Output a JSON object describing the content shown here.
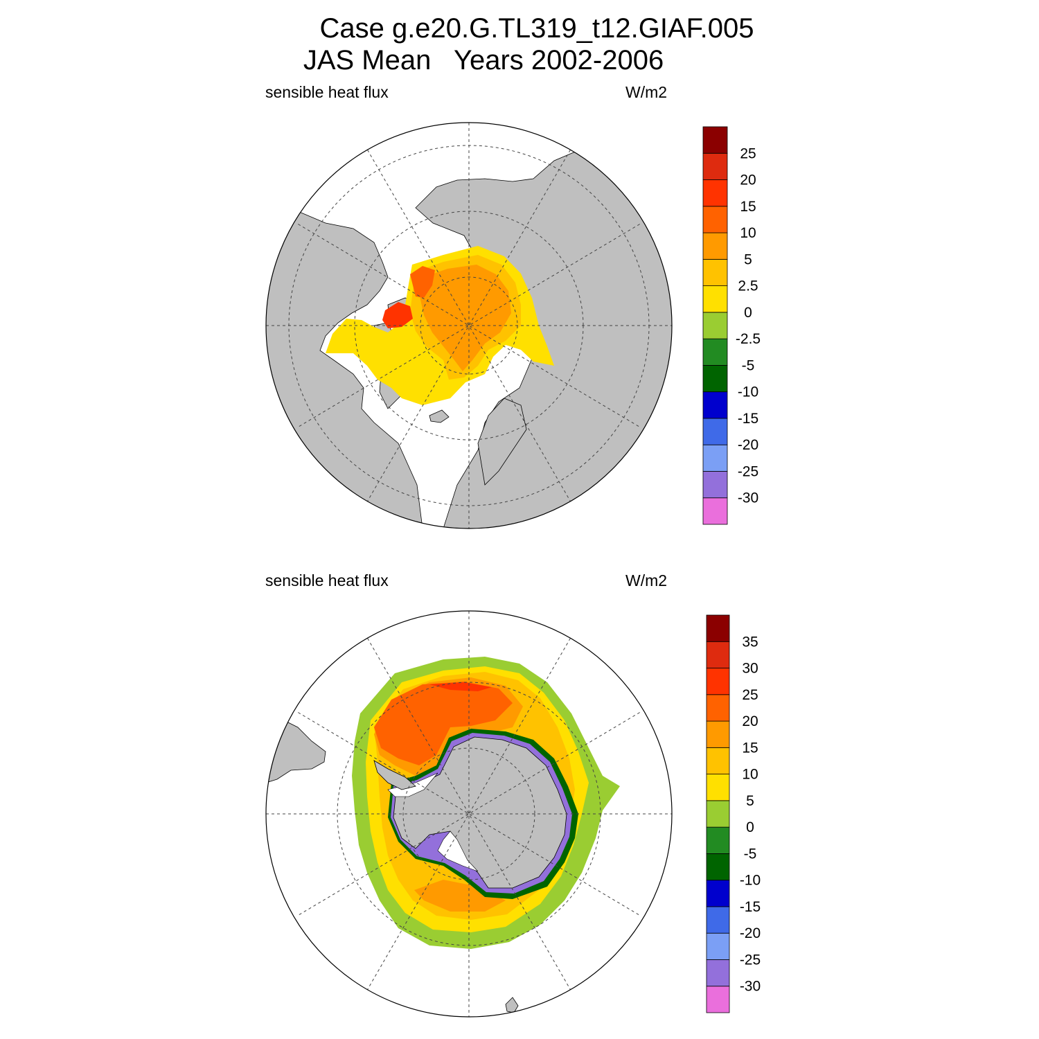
{
  "title": {
    "line1": "Case g.e20.G.TL319_t12.GIAF.005",
    "line2": "JAS Mean   Years 2002-2006"
  },
  "colors": {
    "land": "#bfbfbf",
    "ice_free": "#ffffff",
    "palette": [
      "#ea6fdc",
      "#9370db",
      "#7b9ff5",
      "#3f6ae8",
      "#0000cd",
      "#006400",
      "#228b22",
      "#9acd32",
      "#ffe000",
      "#ffc200",
      "#ff9a00",
      "#ff6200",
      "#ff3300",
      "#de2b0f",
      "#8b0000"
    ]
  },
  "maps": [
    {
      "name": "north",
      "left_label": "sensible heat flux",
      "right_label": "W/m2",
      "colorbar_labels": [
        "-30",
        "-25",
        "-20",
        "-15",
        "-10",
        "-5",
        "-2.5",
        "0",
        "2.5",
        "5",
        "10",
        "15",
        "20",
        "25"
      ]
    },
    {
      "name": "south",
      "left_label": "sensible heat flux",
      "right_label": "W/m2",
      "colorbar_labels": [
        "-30",
        "-25",
        "-20",
        "-15",
        "-10",
        "-5",
        "0",
        "5",
        "10",
        "15",
        "20",
        "25",
        "30",
        "35"
      ]
    }
  ]
}
